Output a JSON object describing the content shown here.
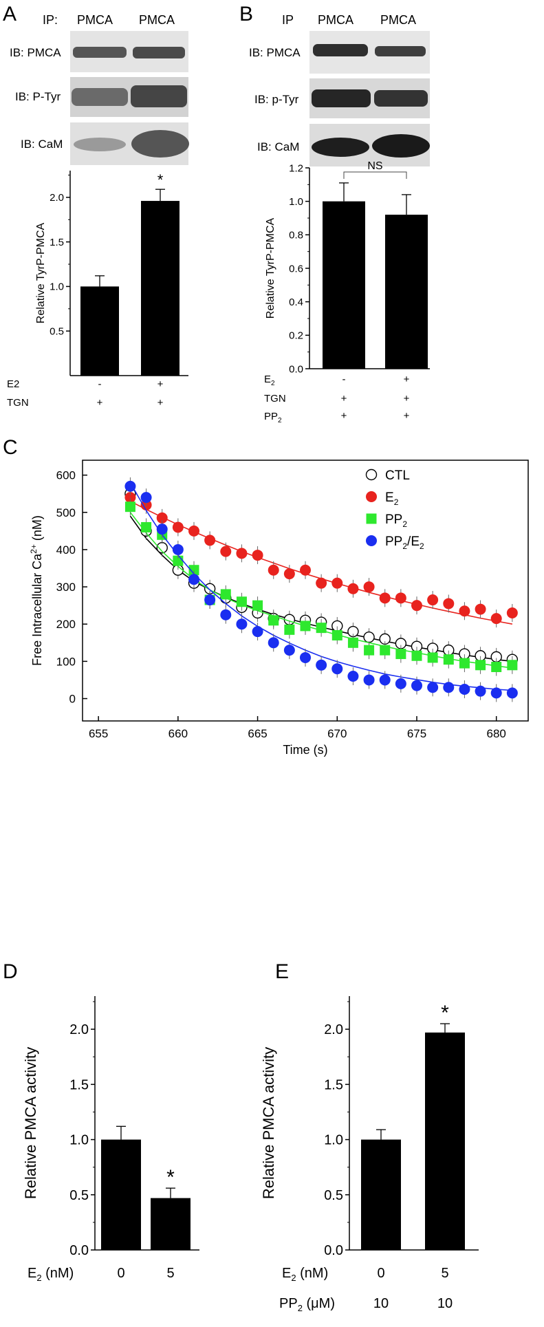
{
  "panels": {
    "A": {
      "letter": "A",
      "blot": {
        "ip_label": "IP:",
        "lane_labels": [
          "PMCA",
          "PMCA"
        ],
        "rows": [
          "IB: PMCA",
          "IB: P-Tyr",
          "IB: CaM"
        ]
      },
      "conditions": [
        {
          "name": "E2",
          "values": [
            "-",
            "+"
          ]
        },
        {
          "name": "TGN",
          "values": [
            "+",
            "+"
          ]
        }
      ]
    },
    "B": {
      "letter": "B",
      "blot": {
        "ip_label": "IP",
        "lane_labels": [
          "PMCA",
          "PMCA"
        ],
        "rows": [
          "IB: PMCA",
          "IB: p-Tyr",
          "IB: CaM"
        ]
      },
      "conditions": [
        {
          "name": "E",
          "sub": "2",
          "values": [
            "-",
            "+"
          ]
        },
        {
          "name": "TGN",
          "sub": "",
          "values": [
            "+",
            "+"
          ]
        },
        {
          "name": "PP",
          "sub": "2",
          "values": [
            "+",
            "+"
          ]
        }
      ]
    },
    "C": {
      "letter": "C"
    },
    "D": {
      "letter": "D",
      "conditions": [
        {
          "name": "E",
          "sub": "2",
          "unit": " (nM)",
          "values": [
            "0",
            "5"
          ]
        }
      ]
    },
    "E": {
      "letter": "E",
      "conditions": [
        {
          "name": "E",
          "sub": "2",
          "unit": " (nM)",
          "values": [
            "0",
            "5"
          ]
        },
        {
          "name": "PP",
          "sub": "2",
          "unit": " (μM)",
          "values": [
            "10",
            "10"
          ]
        }
      ]
    }
  },
  "chart_data": [
    {
      "panel": "A",
      "type": "bar",
      "ylabel": "Relative TyrP-PMCA",
      "ylim": [
        0,
        2.3
      ],
      "yticks": [
        "0.5",
        "1.0",
        "1.5",
        "2.0"
      ],
      "values": [
        1.0,
        1.96
      ],
      "errors": [
        0.12,
        0.13
      ],
      "significance": [
        "",
        "*"
      ],
      "bar_color": "#000000"
    },
    {
      "panel": "B",
      "type": "bar",
      "ylabel": "Relative TyrP-PMCA",
      "ylim": [
        0,
        1.2
      ],
      "yticks": [
        "0.0",
        "0.2",
        "0.4",
        "0.6",
        "0.8",
        "1.0",
        "1.2"
      ],
      "values": [
        1.0,
        0.92
      ],
      "errors": [
        0.11,
        0.12
      ],
      "comparison_label": "NS",
      "bar_color": "#000000"
    },
    {
      "panel": "C",
      "type": "scatter",
      "xlabel": "Time (s)",
      "ylabel": "Free Intracellular Ca",
      "ylabel_sup": "2+",
      "ylabel_unit": " (nM)",
      "xlim": [
        654,
        682
      ],
      "ylim": [
        -60,
        640
      ],
      "xticks": [
        "655",
        "660",
        "665",
        "670",
        "675",
        "680"
      ],
      "yticks": [
        "0",
        "100",
        "200",
        "300",
        "400",
        "500",
        "600"
      ],
      "legend_position": "top-right",
      "x": [
        657,
        658,
        659,
        660,
        661,
        662,
        663,
        664,
        665,
        666,
        667,
        668,
        669,
        670,
        671,
        672,
        673,
        674,
        675,
        676,
        677,
        678,
        679,
        680,
        681
      ],
      "series": [
        {
          "name": "CTL",
          "name_sub": "",
          "marker": "open-circle",
          "color": "#000000",
          "values": [
            550,
            450,
            405,
            345,
            310,
            295,
            270,
            245,
            230,
            215,
            212,
            210,
            205,
            195,
            180,
            165,
            160,
            148,
            140,
            135,
            130,
            120,
            115,
            112,
            105
          ],
          "fit": [
            490,
            430,
            385,
            345,
            315,
            292,
            272,
            255,
            240,
            226,
            214,
            202,
            192,
            182,
            172,
            163,
            154,
            146,
            138,
            131,
            124,
            117,
            111,
            105,
            100
          ]
        },
        {
          "name": "E",
          "name_sub": "2",
          "marker": "filled-circle",
          "color": "#e8231e",
          "values": [
            540,
            520,
            485,
            460,
            450,
            425,
            395,
            390,
            385,
            345,
            335,
            345,
            310,
            310,
            295,
            300,
            270,
            270,
            250,
            265,
            255,
            235,
            240,
            215,
            230
          ],
          "fit": [
            530,
            508,
            487,
            467,
            448,
            430,
            412,
            395,
            379,
            364,
            349,
            335,
            322,
            309,
            297,
            285,
            274,
            263,
            253,
            243,
            234,
            225,
            216,
            208,
            200
          ]
        },
        {
          "name": "PP",
          "name_sub": "2",
          "marker": "filled-square",
          "color": "#2ee82e",
          "values": [
            515,
            460,
            440,
            370,
            345,
            265,
            280,
            260,
            250,
            210,
            185,
            195,
            190,
            170,
            150,
            130,
            130,
            120,
            115,
            110,
            105,
            95,
            90,
            85,
            90
          ],
          "fit": [
            500,
            445,
            395,
            355,
            320,
            292,
            270,
            252,
            236,
            222,
            208,
            195,
            183,
            171,
            160,
            150,
            140,
            131,
            123,
            115,
            107,
            100,
            94,
            88,
            82
          ]
        },
        {
          "name": "PP",
          "name_sub": "2",
          "name_suffix": "/E",
          "name_suffix_sub": "2",
          "marker": "filled-circle",
          "color": "#1a2ef0",
          "values": [
            570,
            540,
            455,
            400,
            320,
            265,
            225,
            200,
            180,
            150,
            130,
            110,
            90,
            80,
            60,
            50,
            50,
            40,
            35,
            30,
            30,
            25,
            20,
            15,
            15
          ],
          "fit": [
            580,
            505,
            440,
            385,
            335,
            292,
            255,
            222,
            194,
            170,
            149,
            130,
            113,
            99,
            87,
            76,
            66,
            58,
            51,
            44,
            38,
            33,
            29,
            25,
            22
          ]
        }
      ]
    },
    {
      "panel": "D",
      "type": "bar",
      "ylabel": "Relative PMCA activity",
      "ylim": [
        0,
        2.3
      ],
      "yticks": [
        "0.0",
        "0.5",
        "1.0",
        "1.5",
        "2.0"
      ],
      "values": [
        1.0,
        0.47
      ],
      "errors": [
        0.12,
        0.09
      ],
      "significance": [
        "",
        "*"
      ],
      "bar_color": "#000000"
    },
    {
      "panel": "E",
      "type": "bar",
      "ylabel": "Relative PMCA activity",
      "ylim": [
        0,
        2.3
      ],
      "yticks": [
        "0.0",
        "0.5",
        "1.0",
        "1.5",
        "2.0"
      ],
      "values": [
        1.0,
        1.97
      ],
      "errors": [
        0.09,
        0.08
      ],
      "significance": [
        "",
        "*"
      ],
      "bar_color": "#000000"
    }
  ]
}
